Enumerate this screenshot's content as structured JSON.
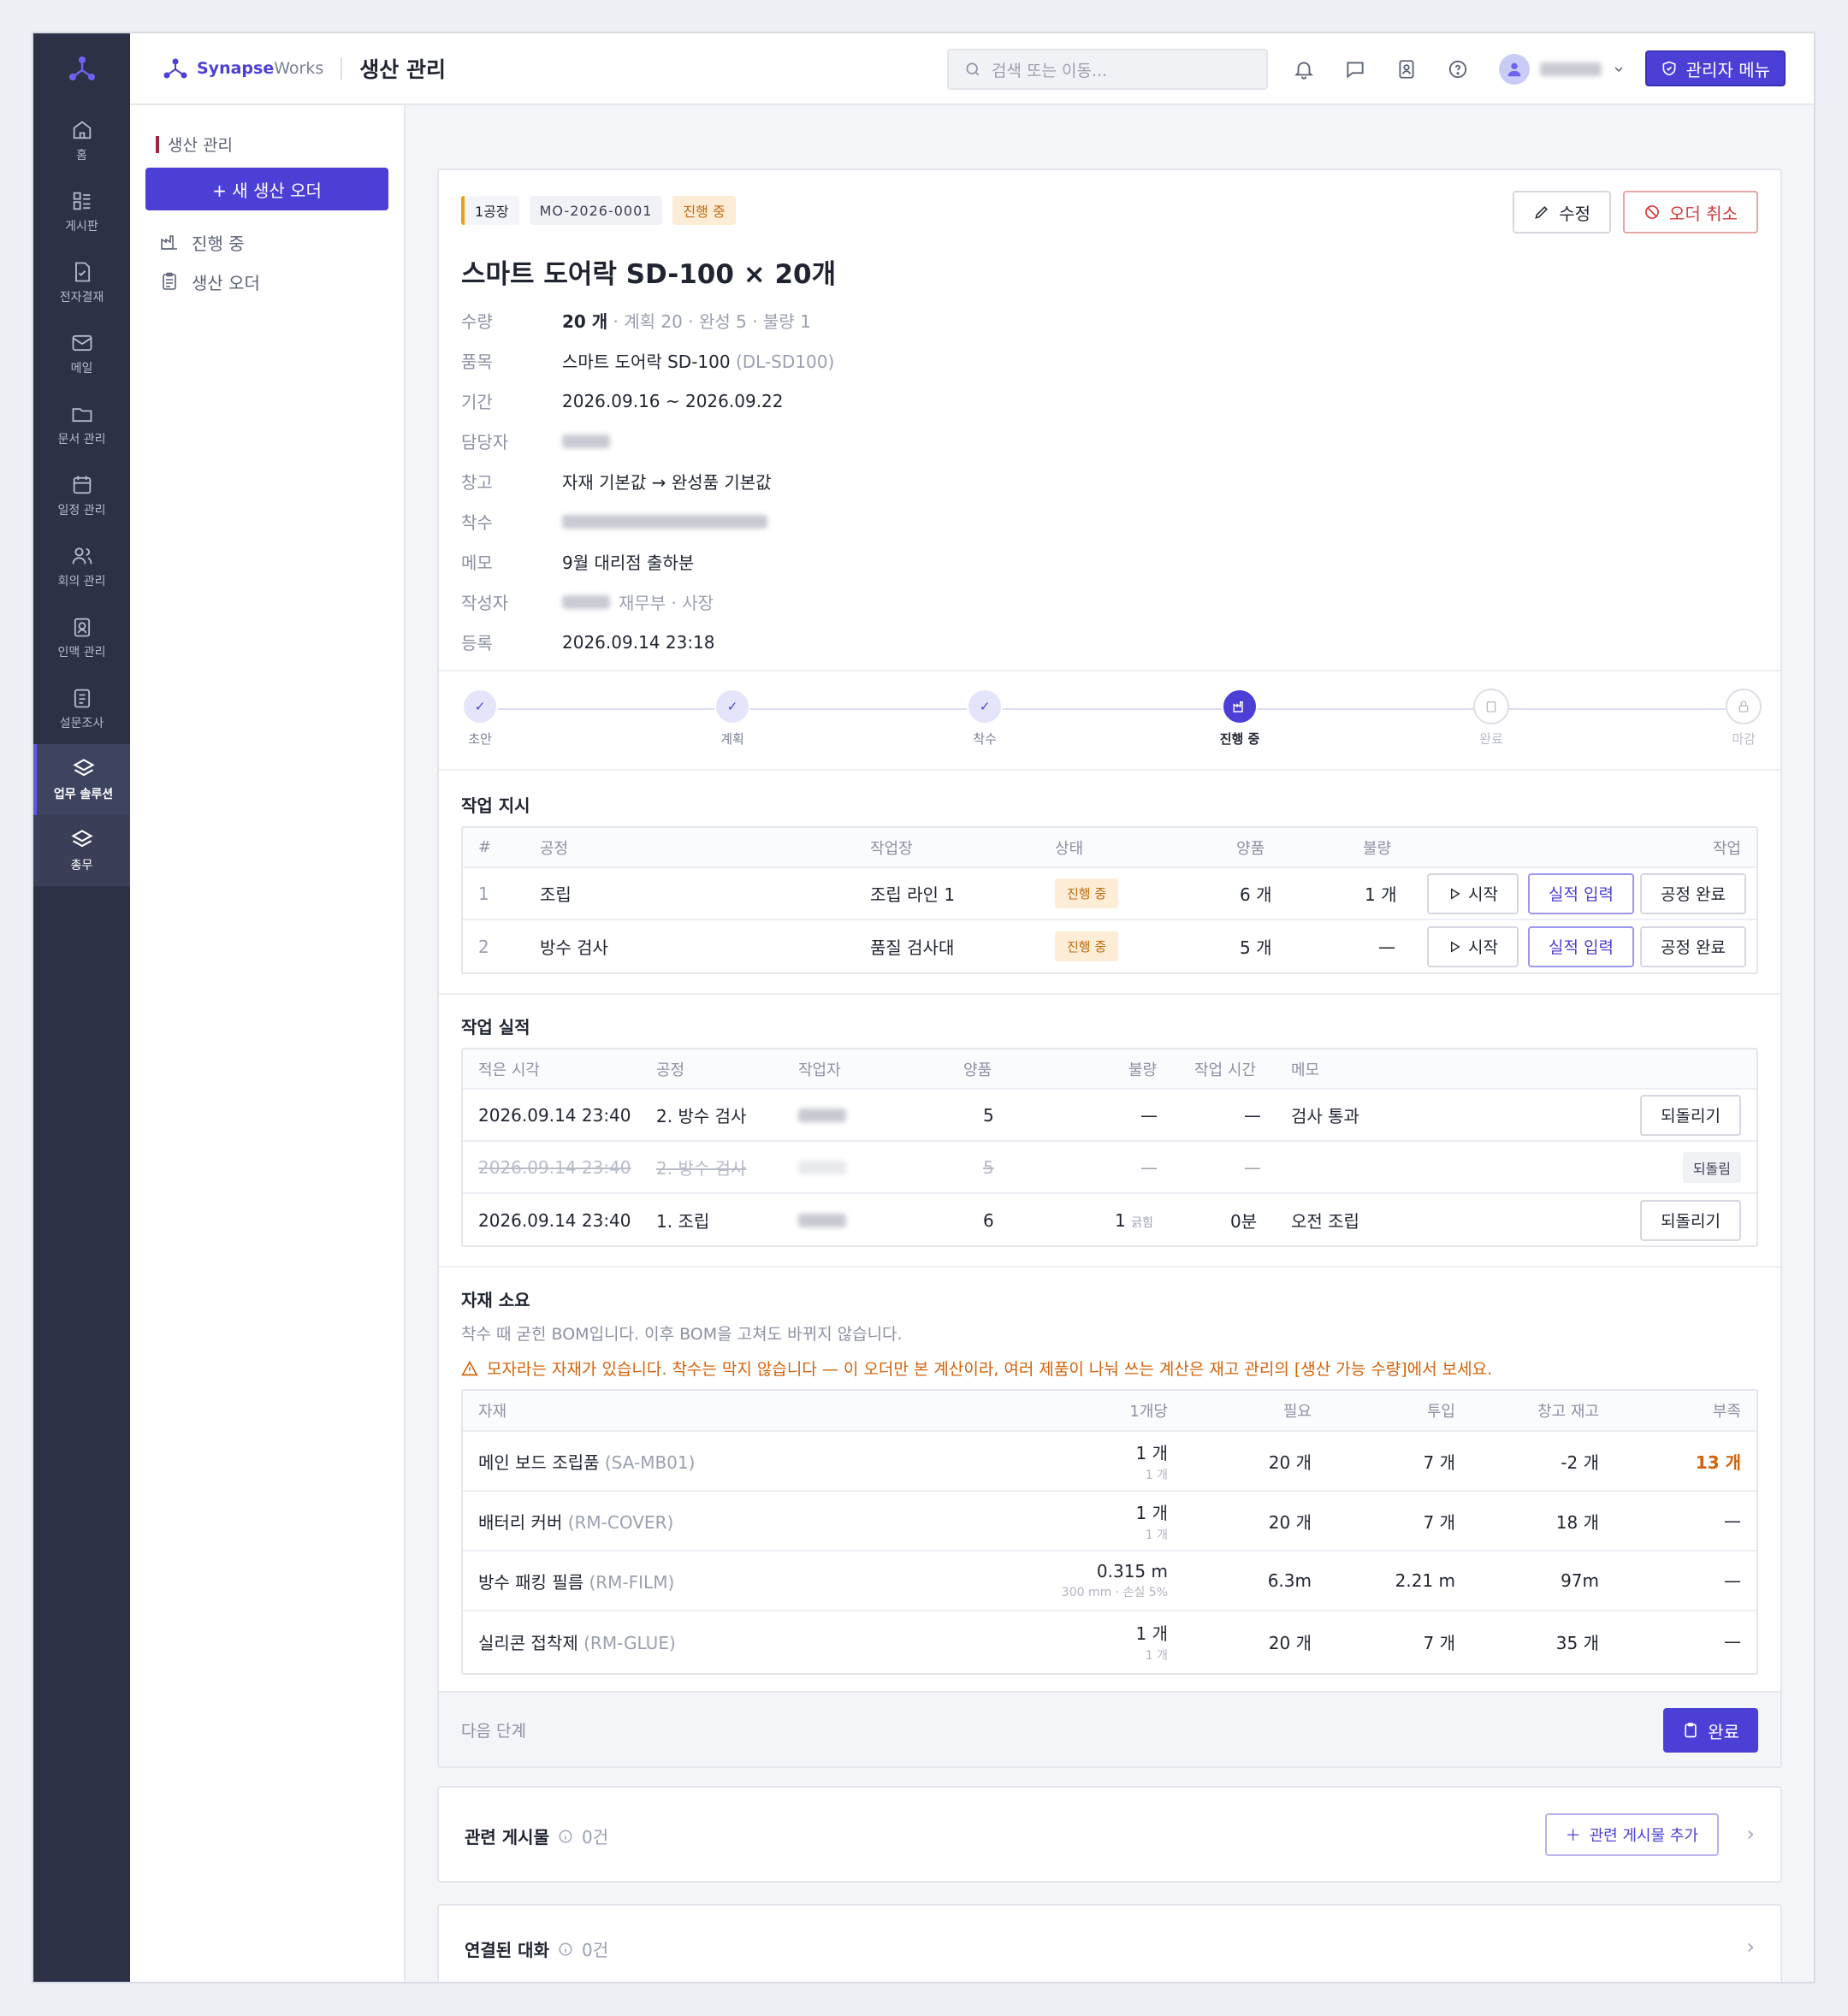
{
  "app": {
    "brand_bold": "Synapse",
    "brand_rest": "Works",
    "page_title": "생산 관리"
  },
  "search": {
    "placeholder": "검색 또는 이동..."
  },
  "admin_button": "관리자 메뉴",
  "rail": [
    {
      "label": "홈",
      "icon": "home-icon"
    },
    {
      "label": "게시판",
      "icon": "board-icon"
    },
    {
      "label": "전자결재",
      "icon": "approval-icon"
    },
    {
      "label": "메일",
      "icon": "mail-icon"
    },
    {
      "label": "문서 관리",
      "icon": "folder-icon"
    },
    {
      "label": "일정 관리",
      "icon": "calendar-icon"
    },
    {
      "label": "회의 관리",
      "icon": "users-icon"
    },
    {
      "label": "인맥 관리",
      "icon": "contact-icon"
    },
    {
      "label": "설문조사",
      "icon": "survey-icon"
    },
    {
      "label": "업무 솔루션",
      "icon": "layers-icon"
    },
    {
      "label": "총무",
      "icon": "layers-icon"
    }
  ],
  "subnav": {
    "title": "생산 관리",
    "new_button": "+ 새 생산 오더",
    "items": [
      {
        "label": "진행 중"
      },
      {
        "label": "생산 오더"
      }
    ]
  },
  "order": {
    "plant": "1공장",
    "code": "MO-2026-0001",
    "status": "진행 중",
    "edit_button": "수정",
    "cancel_button": "오더 취소",
    "title": "스마트 도어락 SD-100 × 20개",
    "fields": {
      "qty_label": "수량",
      "qty_value": "20 개",
      "qty_detail": " · 계획 20 · 완성 5 · 불량 1",
      "item_label": "품목",
      "item_value": "스마트 도어락 SD-100",
      "item_code": "(DL-SD100)",
      "period_label": "기간",
      "period_value": "2026.09.16 ~ 2026.09.22",
      "manager_label": "담당자",
      "warehouse_label": "창고",
      "warehouse_value": "자재 기본값 → 완성품 기본값",
      "start_label": "착수",
      "memo_label": "메모",
      "memo_value": "9월 대리점 출하분",
      "author_label": "작성자",
      "author_role": "재무부 · 사장",
      "reg_label": "등록",
      "reg_value": "2026.09.14 23:18"
    }
  },
  "steps": [
    {
      "label": "초안",
      "state": "done"
    },
    {
      "label": "계획",
      "state": "done"
    },
    {
      "label": "착수",
      "state": "done"
    },
    {
      "label": "진행 중",
      "state": "current"
    },
    {
      "label": "완료",
      "state": "future"
    },
    {
      "label": "마감",
      "state": "future"
    }
  ],
  "work_orders": {
    "title": "작업 지시",
    "headers": {
      "no": "#",
      "process": "공정",
      "station": "작업장",
      "status": "상태",
      "good": "양품",
      "defect": "불량",
      "action": "작업"
    },
    "rows": [
      {
        "no": "1",
        "process": "조립",
        "station": "조립 라인 1",
        "status": "진행 중",
        "good": "6 개",
        "defect": "1 개"
      },
      {
        "no": "2",
        "process": "방수 검사",
        "station": "품질 검사대",
        "status": "진행 중",
        "good": "5 개",
        "defect": "—"
      }
    ],
    "btn_start": "시작",
    "btn_record": "실적 입력",
    "btn_done": "공정 완료"
  },
  "results": {
    "title": "작업 실적",
    "headers": {
      "time": "적은 시각",
      "process": "공정",
      "worker": "작업자",
      "good": "양품",
      "defect": "불량",
      "hours": "작업 시간",
      "memo": "메모"
    },
    "rows": [
      {
        "time": "2026.09.14 23:40",
        "process": "2. 방수 검사",
        "good": "5",
        "defect": "—",
        "hours": "—",
        "memo": "검사 통과",
        "action": "되돌리기",
        "reverted": false
      },
      {
        "time": "2026.09.14 23:40",
        "process": "2. 방수 검사",
        "good": "5",
        "defect": "—",
        "hours": "—",
        "memo": "",
        "action": "되돌림",
        "reverted": true
      },
      {
        "time": "2026.09.14 23:40",
        "process": "1. 조립",
        "good": "6",
        "defect": "1",
        "defect_note": "긁힘",
        "hours": "0분",
        "memo": "오전 조립",
        "action": "되돌리기",
        "reverted": false
      }
    ]
  },
  "materials": {
    "title": "자재 소요",
    "note": "착수 때 굳힌 BOM입니다. 이후 BOM을 고쳐도 바뀌지 않습니다.",
    "warning": "모자라는 자재가 있습니다. 착수는 막지 않습니다 — 이 오더만 본 계산이라, 여러 제품이 나눠 쓰는 계산은 재고 관리의 [생산 가능 수량]에서 보세요.",
    "headers": {
      "material": "자재",
      "per_unit": "1개당",
      "required": "필요",
      "input": "투입",
      "ref_stock": "창고 재고",
      "short": "부족"
    },
    "rows": [
      {
        "name": "메인 보드 조립품",
        "code": "(SA-MB01)",
        "per_unit": "1 개",
        "per_unit_sub": "1 개",
        "required": "20 개",
        "input": "7 개",
        "stock": "-2 개",
        "short": "13 개"
      },
      {
        "name": "배터리 커버",
        "code": "(RM-COVER)",
        "per_unit": "1 개",
        "per_unit_sub": "1 개",
        "required": "20 개",
        "input": "7 개",
        "stock": "18 개",
        "short": "—"
      },
      {
        "name": "방수 패킹 필름",
        "code": "(RM-FILM)",
        "per_unit": "0.315 m",
        "per_unit_sub": "300 mm · 손실 5%",
        "required": "6.3m",
        "input": "2.21 m",
        "stock": "97m",
        "short": "—"
      },
      {
        "name": "실리콘 접착제",
        "code": "(RM-GLUE)",
        "per_unit": "1 개",
        "per_unit_sub": "1 개",
        "required": "20 개",
        "input": "7 개",
        "stock": "35 개",
        "short": "—"
      }
    ]
  },
  "next": {
    "label": "다음 단계",
    "button": "완료"
  },
  "related": {
    "title": "관련 게시물",
    "count": "0건",
    "add_button": "관련 게시물 추가"
  },
  "linked": {
    "title": "연결된 대화",
    "count": "0건"
  },
  "colors": {
    "accent": "#4b3fd6",
    "warning": "#d4620a",
    "danger": "#d23a3a",
    "sidebar": "#2c3146"
  }
}
